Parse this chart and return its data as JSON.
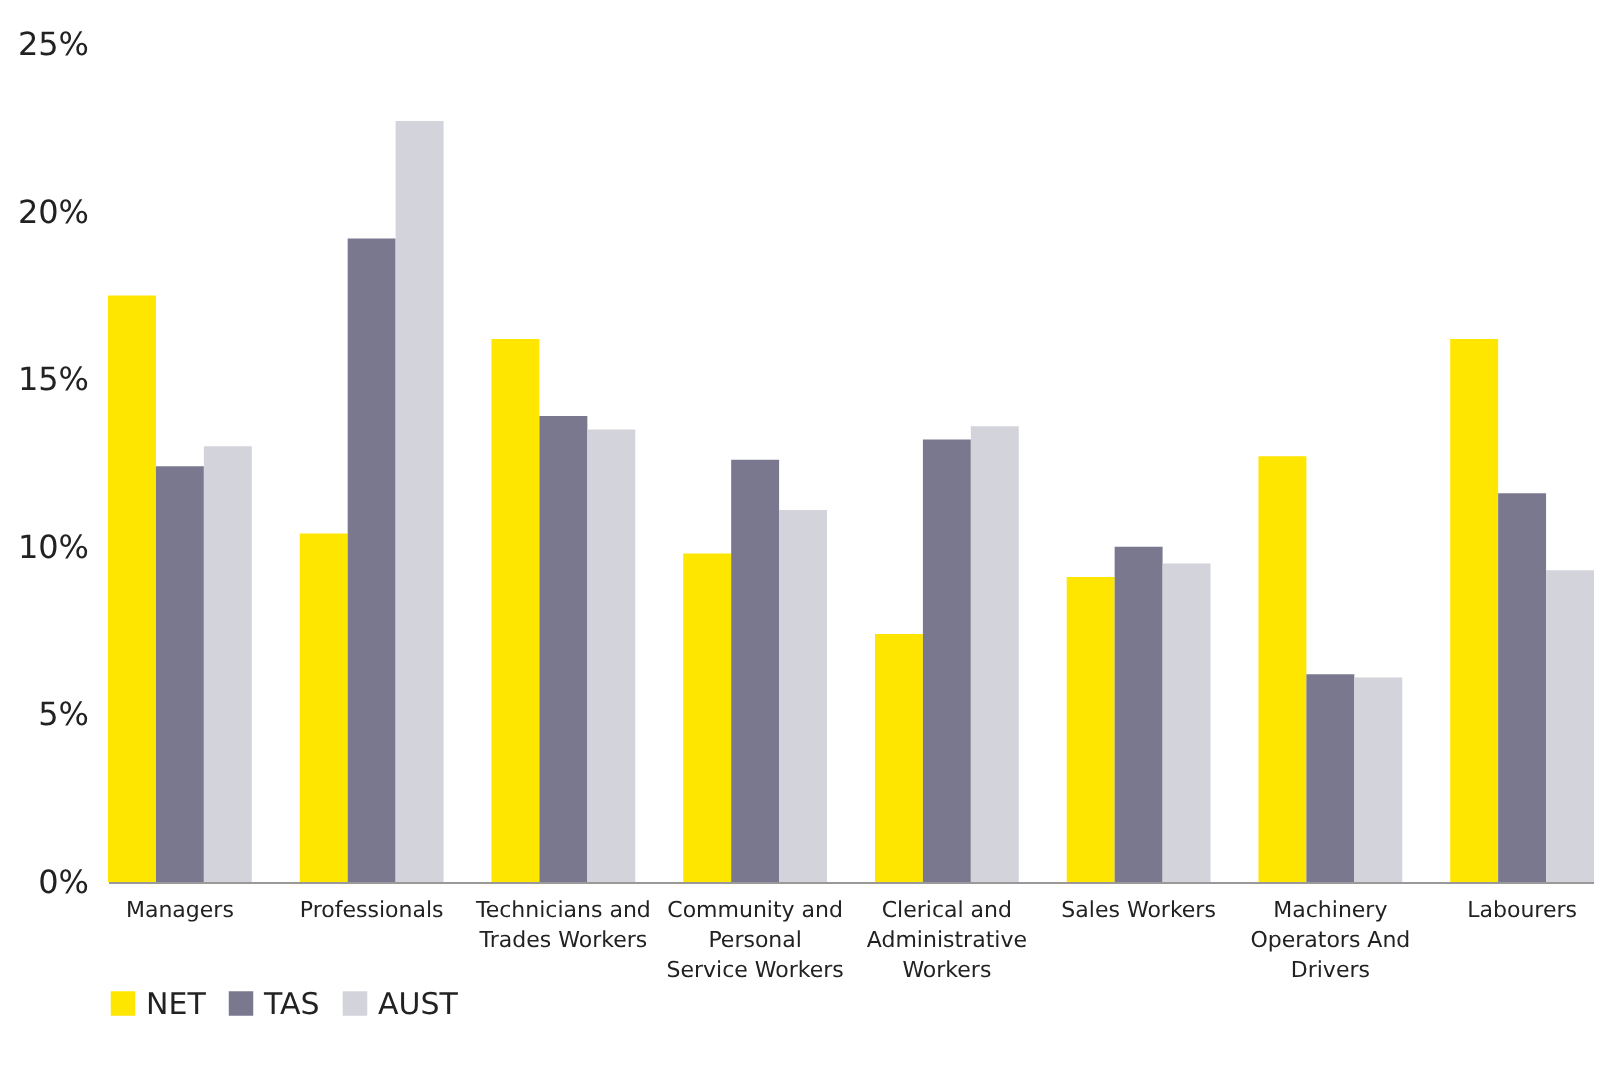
{
  "chart_data": {
    "type": "bar",
    "categories": [
      "Managers",
      "Professionals",
      "Technicians and Trades Workers",
      "Community and Personal Service Workers",
      "Clerical and Administrative Workers",
      "Sales Workers",
      "Machinery Operators And Drivers",
      "Labourers"
    ],
    "series": [
      {
        "name": "NET",
        "color": "#ffe600",
        "values": [
          17.5,
          10.4,
          16.2,
          9.8,
          7.4,
          9.1,
          12.7,
          16.2
        ]
      },
      {
        "name": "TAS",
        "color": "#7a788f",
        "values": [
          12.4,
          19.2,
          13.9,
          12.6,
          13.2,
          10.0,
          6.2,
          11.6
        ]
      },
      {
        "name": "AUST",
        "color": "#d3d3db",
        "values": [
          13.0,
          22.7,
          13.5,
          11.1,
          13.6,
          9.5,
          6.1,
          9.3
        ]
      }
    ],
    "ylim": [
      0,
      25
    ],
    "yticks": [
      {
        "value": 0,
        "label": "0%"
      },
      {
        "value": 5,
        "label": "5%"
      },
      {
        "value": 10,
        "label": "10%"
      },
      {
        "value": 15,
        "label": "15%"
      },
      {
        "value": 20,
        "label": "20%"
      },
      {
        "value": 25,
        "label": "25%"
      }
    ],
    "grid": false,
    "legend": "bottom"
  }
}
